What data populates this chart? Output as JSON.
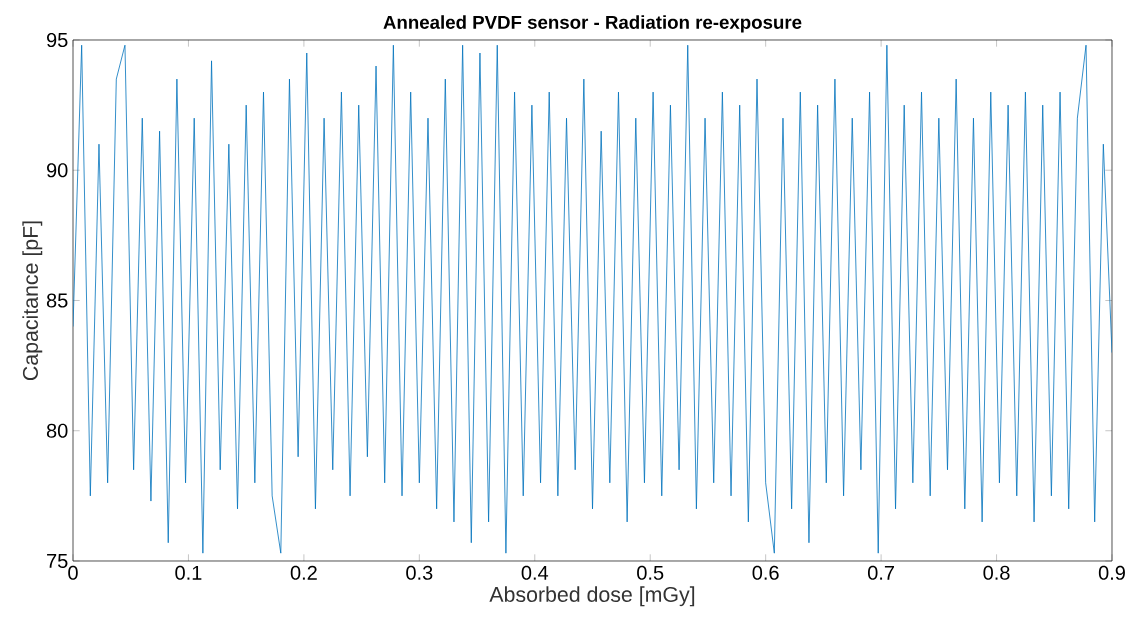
{
  "chart_data": {
    "type": "line",
    "title": "Annealed PVDF sensor - Radiation re-exposure",
    "xlabel": "Absorbed dose [mGy]",
    "ylabel": "Capacitance [pF]",
    "xlim": [
      0,
      0.9
    ],
    "ylim": [
      75,
      95
    ],
    "xticks": [
      0,
      0.1,
      0.2,
      0.3,
      0.4,
      0.5,
      0.6,
      0.7,
      0.8,
      0.9
    ],
    "yticks": [
      75,
      80,
      85,
      90,
      95
    ],
    "grid": false,
    "marker": "none",
    "line_style": "solid",
    "series": [
      {
        "color": "#0072bd",
        "x": [
          0,
          0.0075,
          0.015,
          0.0225,
          0.03,
          0.0375,
          0.045,
          0.0525,
          0.06,
          0.0675,
          0.075,
          0.0825,
          0.09,
          0.0975,
          0.105,
          0.1125,
          0.12,
          0.1275,
          0.135,
          0.1425,
          0.15,
          0.1575,
          0.165,
          0.1725,
          0.18,
          0.1875,
          0.195,
          0.2025,
          0.21,
          0.2175,
          0.225,
          0.2325,
          0.24,
          0.2475,
          0.255,
          0.2625,
          0.27,
          0.2775,
          0.285,
          0.2925,
          0.3,
          0.3075,
          0.315,
          0.3225,
          0.33,
          0.3375,
          0.345,
          0.3525,
          0.36,
          0.3675,
          0.375,
          0.3825,
          0.39,
          0.3975,
          0.405,
          0.4125,
          0.42,
          0.4275,
          0.435,
          0.4425,
          0.45,
          0.4575,
          0.465,
          0.4725,
          0.48,
          0.4875,
          0.495,
          0.5025,
          0.51,
          0.5175,
          0.525,
          0.5325,
          0.54,
          0.5475,
          0.555,
          0.5625,
          0.57,
          0.5775,
          0.585,
          0.5925,
          0.6,
          0.6075,
          0.615,
          0.6225,
          0.63,
          0.6375,
          0.645,
          0.6525,
          0.66,
          0.6675,
          0.675,
          0.6825,
          0.69,
          0.6975,
          0.705,
          0.7125,
          0.72,
          0.7275,
          0.735,
          0.7425,
          0.75,
          0.7575,
          0.765,
          0.7725,
          0.78,
          0.7875,
          0.795,
          0.8025,
          0.81,
          0.8175,
          0.825,
          0.8325,
          0.84,
          0.8475,
          0.855,
          0.8625,
          0.87,
          0.8775,
          0.885,
          0.8925,
          0.9
        ],
        "values": [
          84,
          94.8,
          77.5,
          91,
          78,
          93.5,
          94.8,
          78.5,
          92,
          77.3,
          91.5,
          75.7,
          93.5,
          78,
          92,
          75.3,
          94.2,
          78.5,
          91,
          77,
          92.5,
          78,
          93,
          77.5,
          75.3,
          93.5,
          79,
          94.5,
          77,
          92,
          78.5,
          93,
          77.5,
          92.5,
          79,
          94,
          78,
          94.8,
          77.5,
          93,
          78,
          92,
          77,
          93.5,
          76.5,
          94.8,
          75.7,
          94.5,
          76.5,
          94.8,
          75.3,
          93,
          77.5,
          92.5,
          78,
          93,
          77.5,
          92,
          78.5,
          93.5,
          77,
          91.5,
          78,
          93,
          76.5,
          92,
          78,
          93,
          77.5,
          92.5,
          78.5,
          94.8,
          77,
          92,
          78,
          93,
          77.5,
          92.5,
          76.5,
          93.5,
          78,
          75.3,
          92,
          77,
          93,
          75.7,
          92.5,
          78,
          93.5,
          77.5,
          92,
          78.5,
          93,
          75.3,
          94.8,
          77,
          92.5,
          78,
          93,
          77.5,
          92,
          78.5,
          93.5,
          77,
          92,
          76.5,
          93,
          78,
          92.5,
          77.5,
          93,
          76.5,
          92.5,
          77.5,
          93,
          77,
          92,
          94.8,
          76.5,
          91,
          83
        ]
      }
    ]
  }
}
